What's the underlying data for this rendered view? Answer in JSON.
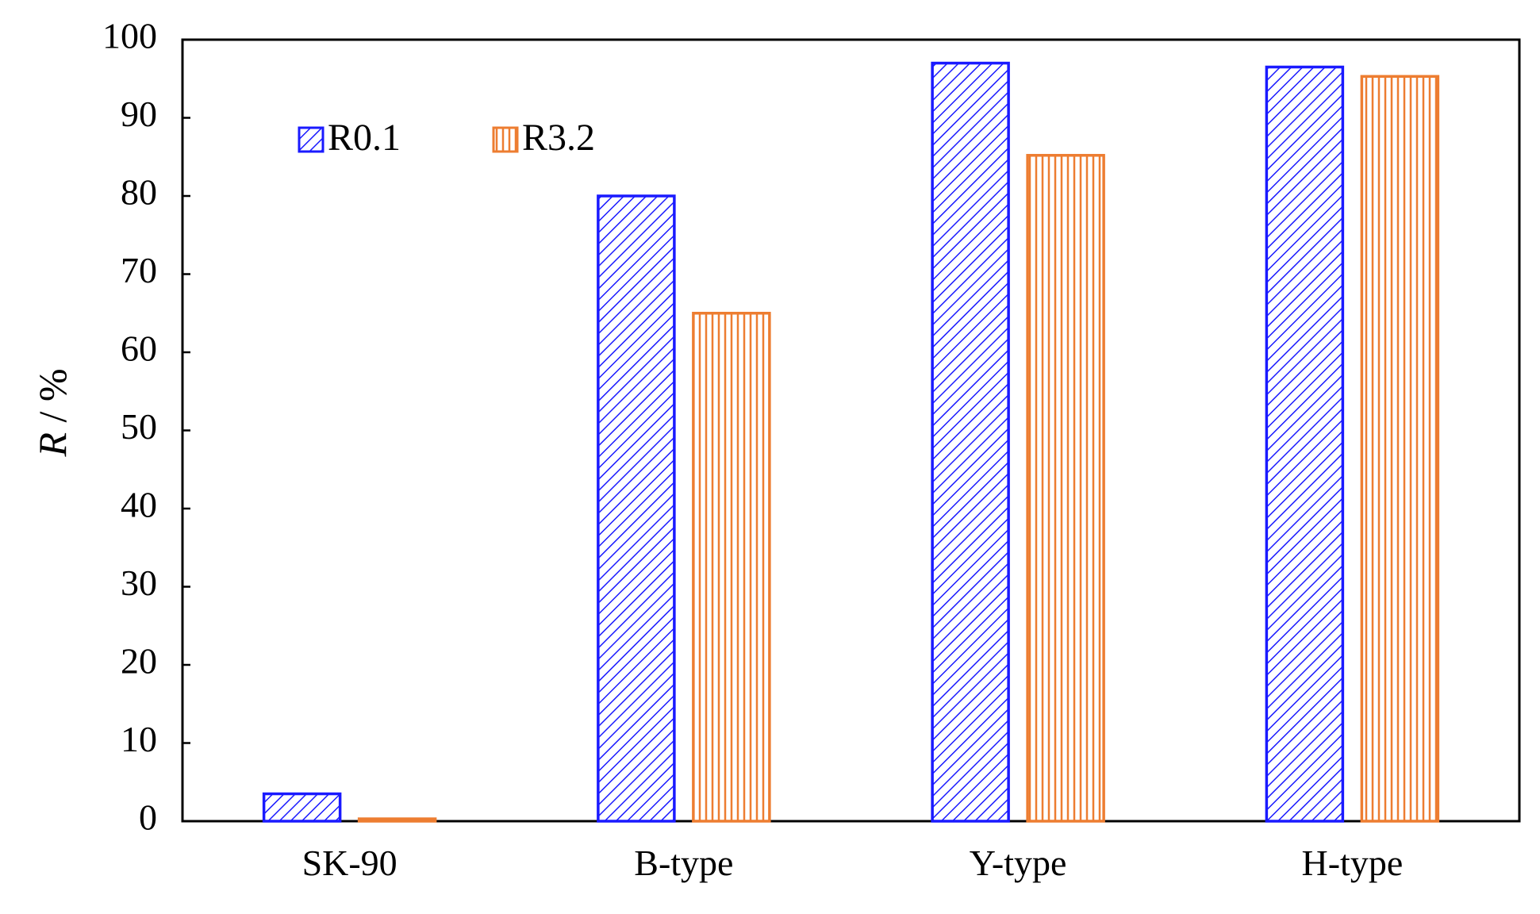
{
  "chart_data": {
    "type": "bar",
    "title": "",
    "xlabel": "",
    "ylabel": {
      "symbol": "R",
      "unit": " / %"
    },
    "categories": [
      "SK-90",
      "B-type",
      "Y-type",
      "H-type"
    ],
    "series": [
      {
        "name": "R0.1",
        "values": [
          3.5,
          80,
          97,
          96.5
        ],
        "color": "#1a1aff",
        "pattern": "diagonal-hatch"
      },
      {
        "name": "R3.2",
        "values": [
          0.3,
          65,
          85.2,
          95.3
        ],
        "color": "#ed7d31",
        "pattern": "vertical-hatch"
      }
    ],
    "ylim": [
      0,
      100
    ],
    "yticks": [
      0,
      10,
      20,
      30,
      40,
      50,
      60,
      70,
      80,
      90,
      100
    ],
    "grid": false,
    "legend_position": "top-left"
  }
}
